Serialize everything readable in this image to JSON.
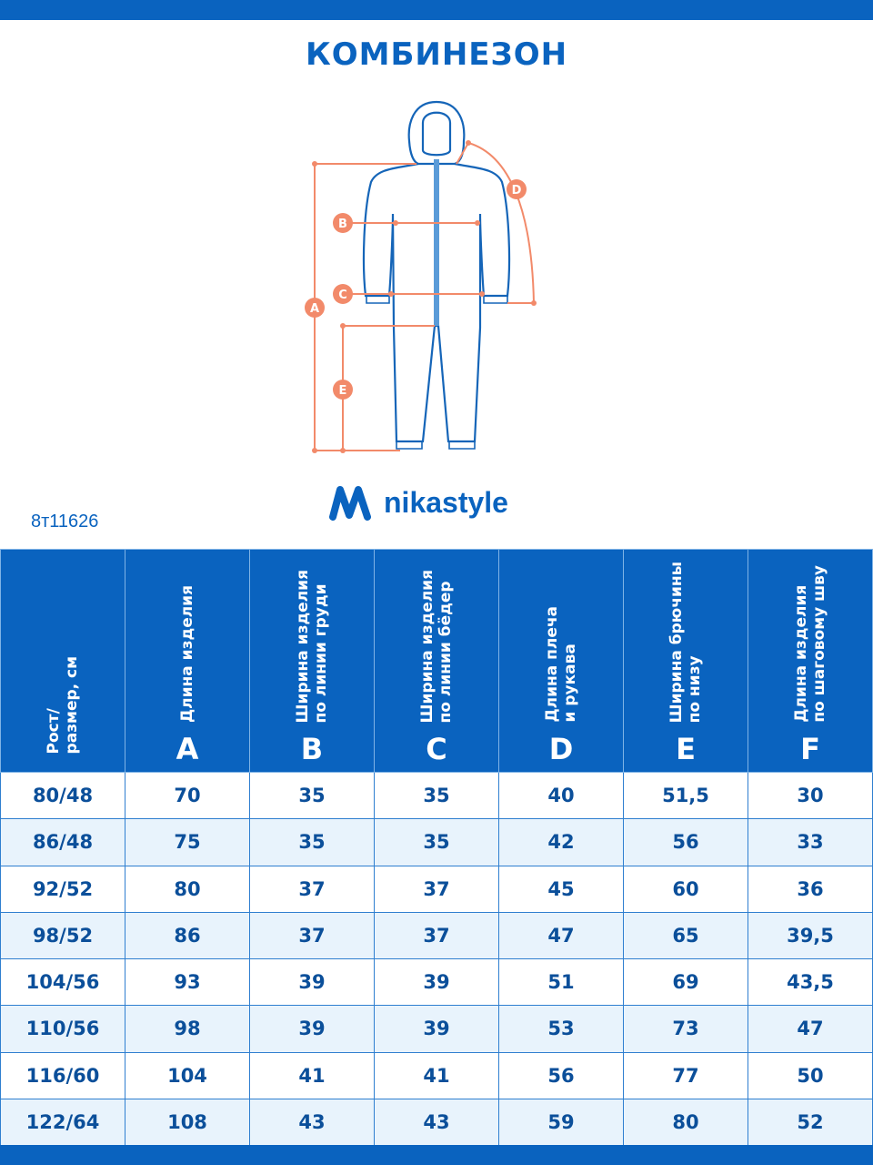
{
  "title": "КОМБИНЕЗОН",
  "diagram_labels": [
    "A",
    "B",
    "C",
    "D",
    "E"
  ],
  "brand": "nikastyle",
  "article": "8т11626",
  "table": {
    "headers": [
      {
        "text": "Рост/\nразмер, см",
        "letter": ""
      },
      {
        "text": "Длина изделия",
        "letter": "A"
      },
      {
        "text": "Ширина изделия\nпо линии груди",
        "letter": "B"
      },
      {
        "text": "Ширина изделия\nпо линии бёдер",
        "letter": "C"
      },
      {
        "text": "Длина плеча\nи рукава",
        "letter": "D"
      },
      {
        "text": "Ширина брючины\nпо низу",
        "letter": "E"
      },
      {
        "text": "Длина изделия\nпо шаговому шву",
        "letter": "F"
      }
    ],
    "rows": [
      [
        "80/48",
        "70",
        "35",
        "35",
        "40",
        "51,5",
        "30"
      ],
      [
        "86/48",
        "75",
        "35",
        "35",
        "42",
        "56",
        "33"
      ],
      [
        "92/52",
        "80",
        "37",
        "37",
        "45",
        "60",
        "36"
      ],
      [
        "98/52",
        "86",
        "37",
        "37",
        "47",
        "65",
        "39,5"
      ],
      [
        "104/56",
        "93",
        "39",
        "39",
        "51",
        "69",
        "43,5"
      ],
      [
        "110/56",
        "98",
        "39",
        "39",
        "53",
        "73",
        "47"
      ],
      [
        "116/60",
        "104",
        "41",
        "41",
        "56",
        "77",
        "50"
      ],
      [
        "122/64",
        "108",
        "43",
        "43",
        "59",
        "80",
        "52"
      ]
    ]
  },
  "colors": {
    "brand": "#0a63bf",
    "accent": "#f28a6a",
    "row_alt": "#e8f3fc"
  }
}
